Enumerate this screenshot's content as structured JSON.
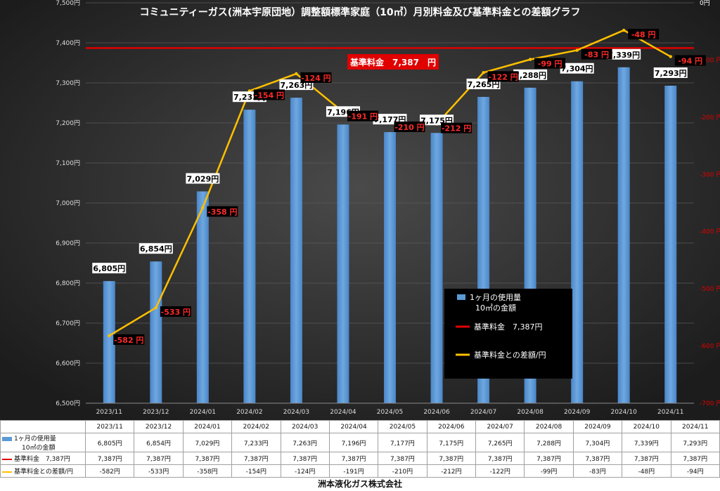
{
  "chart_data": {
    "type": "bar",
    "title": "コミュニティーガス(洲本宇原団地）調整額標準家庭（10㎥）月別料金及び基準料金との差額グラフ",
    "categories": [
      "2023/11",
      "2023/12",
      "2024/01",
      "2024/02",
      "2024/03",
      "2024/04",
      "2024/05",
      "2024/06",
      "2024/07",
      "2024/08",
      "2024/09",
      "2024/10",
      "2024/11"
    ],
    "y_left": {
      "min": 6500,
      "max": 7500,
      "step": 100,
      "unit": "円"
    },
    "y_right": {
      "min": -700,
      "max": 0,
      "step": 100,
      "unit": "円",
      "labels": [
        "0円",
        "-100 円",
        "-200 円",
        "-300 円",
        "-400 円",
        "-500 円",
        "-600 円",
        "-700 円"
      ]
    },
    "grid": true,
    "legend_position": "bottom-right",
    "series": [
      {
        "name": "1ヶ月の使用量 10㎥の金額",
        "type": "bar",
        "axis": "left",
        "color": "#5b9bd5",
        "values": [
          6805,
          6854,
          7029,
          7233,
          7263,
          7196,
          7177,
          7175,
          7265,
          7288,
          7304,
          7339,
          7293
        ],
        "labels": [
          "6,805円",
          "6,854円",
          "7,029円",
          "7,233円",
          "7,263円",
          "7,196円",
          "7,177円",
          "7,175円",
          "7,265円",
          "7,288円",
          "7,304円",
          "7,339円",
          "7,293円"
        ]
      },
      {
        "name": "基準料金　7,387円",
        "type": "line",
        "axis": "left",
        "color": "#e00000",
        "values": [
          7387,
          7387,
          7387,
          7387,
          7387,
          7387,
          7387,
          7387,
          7387,
          7387,
          7387,
          7387,
          7387
        ],
        "labels": [
          "7,387円",
          "7,387円",
          "7,387円",
          "7,387円",
          "7,387円",
          "7,387円",
          "7,387円",
          "7,387円",
          "7,387円",
          "7,387円",
          "7,387円",
          "7,387円",
          "7,387円"
        ]
      },
      {
        "name": "基準料金との差額/円",
        "type": "line",
        "axis": "right",
        "color": "#ffc000",
        "values": [
          -582,
          -533,
          -358,
          -154,
          -124,
          -191,
          -210,
          -212,
          -122,
          -99,
          -83,
          -48,
          -94
        ],
        "labels": [
          "-582 円",
          "-533 円",
          "-358 円",
          "-154 円",
          "-124 円",
          "-191 円",
          "-210 円",
          "-212 円",
          "-122 円",
          "-99 円",
          "-83 円",
          "-48 円",
          "-94 円"
        ]
      }
    ],
    "annotations": [
      {
        "text": "基準料金　7,387　円"
      }
    ],
    "legend": [
      {
        "line1": "1ヶ月の使用量",
        "line2": "10㎥の金額"
      },
      {
        "line1": "基準料金　7,387円",
        "line2": ""
      },
      {
        "line1": "基準料金との差額/円",
        "line2": ""
      }
    ]
  },
  "table": {
    "rows": [
      {
        "header1": "1ヶ月の使用量",
        "header2": "10㎥の金額",
        "series": 0
      },
      {
        "header1": "基準料金　7,387円",
        "header2": "",
        "series": 1
      },
      {
        "header1": "基準料金との差額/円",
        "header2": "",
        "series": 2
      }
    ],
    "diff_cells": [
      "-582円",
      "-533円",
      "-358円",
      "-154円",
      "-124円",
      "-191円",
      "-210円",
      "-212円",
      "-122円",
      "-99円",
      "-83円",
      "-48円",
      "-94円"
    ]
  },
  "footer": {
    "company": "洲本液化ガス株式会社"
  }
}
